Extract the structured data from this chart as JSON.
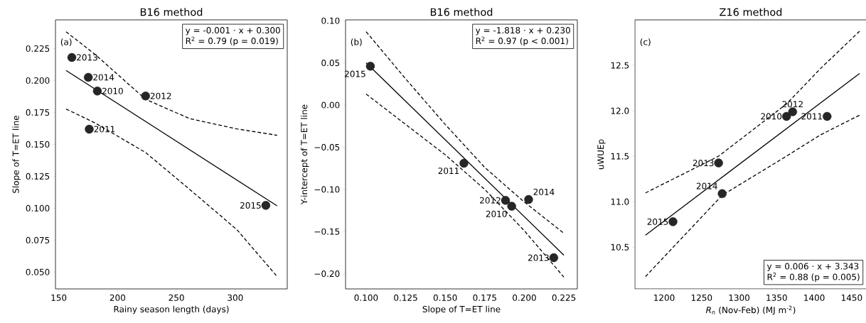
{
  "chart_data": [
    {
      "type": "scatter",
      "title": "B16 method",
      "xlabel": "Rainy season length (days)",
      "ylabel": "Slope of T=ET line",
      "annotations": [
        "(a)",
        "y = -0.001 · x + 0.300",
        "R$^{2}$ = 0.79 (p = 0.019)",
        {
          "text": "2013",
          "x": 161.1,
          "y": 0.2181
        },
        {
          "text": "2014",
          "x": 175.1,
          "y": 0.2025
        },
        {
          "text": "2010",
          "x": 182.8,
          "y": 0.1918
        },
        {
          "text": "2012",
          "x": 223.8,
          "y": 0.1879
        },
        {
          "text": "2011",
          "x": 175.9,
          "y": 0.1619
        },
        {
          "text": "2015",
          "x": 326.0,
          "y": 0.1022
        }
      ],
      "xlim": [
        147.2,
        344.2
      ],
      "ylim": [
        0.0368,
        0.2475
      ],
      "xticks": [
        150,
        200,
        250,
        300
      ],
      "yticks": [
        {
          "value": 0.05,
          "label": "0.050"
        },
        0.075,
        {
          "value": 0.1,
          "label": "0.100"
        },
        0.125,
        {
          "value": 0.15,
          "label": "0.150"
        },
        0.175,
        {
          "value": 0.2,
          "label": "0.200"
        },
        0.225
      ],
      "series": [
        {
          "marker": "circle",
          "color": "#262626",
          "x": [
            161.1,
            175.1,
            182.8,
            223.8,
            175.9,
            326.0
          ],
          "values": [
            0.2181,
            0.2025,
            0.1918,
            0.1879,
            0.1619,
            0.1022
          ]
        },
        {
          "type": "line",
          "line_style": "solid",
          "color": "#000000",
          "x": [
            156.2,
            335.6
          ],
          "values": [
            0.2079,
            0.1018
          ]
        },
        {
          "type": "line",
          "line_style": "dashed",
          "color": "#000000",
          "x": [
            156.2,
            180.8,
            223.8,
            261.2,
            301.4,
            335.6
          ],
          "values": [
            0.2382,
            0.2205,
            0.1853,
            0.1702,
            0.1621,
            0.1571
          ]
        },
        {
          "type": "line",
          "line_style": "dashed",
          "color": "#000000",
          "x": [
            156.2,
            180.8,
            223.8,
            261.2,
            301.4,
            335.6
          ],
          "values": [
            0.1777,
            0.1668,
            0.1436,
            0.1148,
            0.0832,
            0.0465
          ]
        }
      ]
    },
    {
      "type": "scatter",
      "title": "B16 method",
      "xlabel": "Slope of T=ET line",
      "ylabel": "Y-intercept of T=ET line",
      "annotations": [
        "(b)",
        "y = -1.818 · x + 0.230",
        "R$^{2}$ = 0.97 (p < 0.001)",
        {
          "text": "2015",
          "x": 0.1027,
          "y": 0.046
        },
        {
          "text": "2011",
          "x": 0.1618,
          "y": -0.069
        },
        {
          "text": "2012",
          "x": 0.1881,
          "y": -0.113
        },
        {
          "text": "2010",
          "x": 0.192,
          "y": -0.12
        },
        {
          "text": "2014",
          "x": 0.2027,
          "y": -0.112
        },
        {
          "text": "2013",
          "x": 0.2186,
          "y": -0.181
        }
      ],
      "xlim": [
        0.087,
        0.2335
      ],
      "ylim": [
        -0.218,
        0.101
      ],
      "xticks": [
        {
          "value": 0.1,
          "label": "0.100"
        },
        0.125,
        {
          "value": 0.15,
          "label": "0.150"
        },
        0.175,
        {
          "value": 0.2,
          "label": "0.200"
        },
        0.225
      ],
      "yticks": [
        {
          "value": -0.2,
          "label": "−0.20"
        },
        {
          "value": -0.15,
          "label": "−0.15"
        },
        {
          "value": -0.1,
          "label": "−0.10"
        },
        {
          "value": -0.05,
          "label": "−0.05"
        },
        {
          "value": 0,
          "label": "0.00"
        },
        0.05,
        {
          "value": 0.1,
          "label": "0.10"
        }
      ],
      "series": [
        {
          "marker": "circle",
          "color": "#262626",
          "x": [
            0.1027,
            0.1618,
            0.1881,
            0.192,
            0.2027,
            0.2186
          ],
          "values": [
            0.046,
            -0.069,
            -0.113,
            -0.12,
            -0.112,
            -0.181
          ]
        },
        {
          "type": "line",
          "line_style": "solid",
          "color": "#000000",
          "x": [
            0.1,
            0.225
          ],
          "values": [
            0.05,
            -0.178
          ]
        },
        {
          "type": "line",
          "line_style": "dashed",
          "color": "#000000",
          "x": [
            0.1,
            0.125,
            0.15,
            0.175,
            0.2,
            0.225
          ],
          "values": [
            0.087,
            0.031,
            -0.023,
            -0.074,
            -0.115,
            -0.152
          ]
        },
        {
          "type": "line",
          "line_style": "dashed",
          "color": "#000000",
          "x": [
            0.1,
            0.125,
            0.15,
            0.175,
            0.2,
            0.225
          ],
          "values": [
            0.013,
            -0.023,
            -0.059,
            -0.1,
            -0.149,
            -0.204
          ]
        }
      ]
    },
    {
      "type": "scatter",
      "title": "Z16 method",
      "xlabel": "*R*$_{n}$ (Nov-Feb) (MJ m$^{-2}$)",
      "ylabel": "uWUEp",
      "annotations": [
        "(c)",
        "y = 0.006 · x + 3.343",
        "R$^{2}$ = 0.88 (p = 0.005)",
        {
          "text": "2015",
          "x": 1211.8,
          "y": 10.78
        },
        {
          "text": "2013",
          "x": 1272.6,
          "y": 11.426
        },
        {
          "text": "2014",
          "x": 1277.4,
          "y": 11.089
        },
        {
          "text": "2010",
          "x": 1363.1,
          "y": 11.939
        },
        {
          "text": "2012",
          "x": 1371.3,
          "y": 11.989
        },
        {
          "text": "2011",
          "x": 1417.2,
          "y": 11.939
        }
      ],
      "xlim": [
        1161.1,
        1470
      ],
      "ylim": [
        10.041,
        13.0
      ],
      "xticks": [
        1200,
        1250,
        1300,
        1350,
        1400,
        1450
      ],
      "yticks": [
        10.5,
        {
          "value": 11,
          "label": "11.0"
        },
        11.5,
        {
          "value": 12,
          "label": "12.0"
        },
        12.5
      ],
      "series": [
        {
          "marker": "circle",
          "color": "#262626",
          "x": [
            1211.8,
            1272.6,
            1277.4,
            1363.1,
            1371.3,
            1417.2
          ],
          "values": [
            10.78,
            11.426,
            11.089,
            11.939,
            11.989,
            11.939
          ]
        },
        {
          "type": "line",
          "line_style": "solid",
          "color": "#000000",
          "x": [
            1175.2,
            1460.5
          ],
          "values": [
            10.633,
            12.411
          ]
        },
        {
          "type": "line",
          "line_style": "dashed",
          "color": "#000000",
          "x": [
            1175.2,
            1272.6,
            1363.1,
            1408.6,
            1460.5
          ],
          "values": [
            11.097,
            11.501,
            12.075,
            12.466,
            12.875
          ]
        },
        {
          "type": "line",
          "line_style": "dashed",
          "color": "#000000",
          "x": [
            1175.2,
            1277.4,
            1363.1,
            1408.6,
            1460.5
          ],
          "values": [
            10.177,
            11.071,
            11.501,
            11.736,
            11.952
          ]
        }
      ]
    }
  ]
}
